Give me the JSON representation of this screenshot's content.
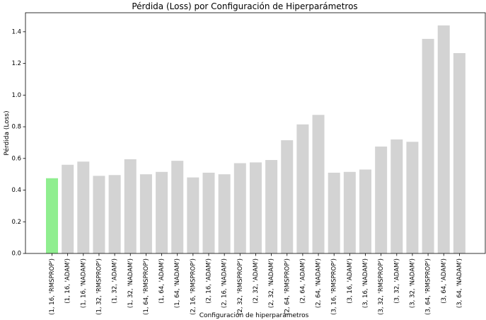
{
  "chart_data": {
    "type": "bar",
    "title": "Pérdida (Loss) por Configuración de Hiperparámetros",
    "xlabel": "Configuración de hiperparámetros",
    "ylabel": "Pérdida (Loss)",
    "ylim": [
      0,
      1.52
    ],
    "yticks": [
      "0.0",
      "0.2",
      "0.4",
      "0.6",
      "0.8",
      "1.0",
      "1.2",
      "1.4"
    ],
    "ytick_values": [
      0,
      0.2,
      0.4,
      0.6,
      0.8,
      1.0,
      1.2,
      1.4
    ],
    "grid": false,
    "categories": [
      "(1, 16, 'RMSPROP')",
      "(1, 16, 'ADAM')",
      "(1, 16, 'NADAM')",
      "(1, 32, 'RMSPROP')",
      "(1, 32, 'ADAM')",
      "(1, 32, 'NADAM')",
      "(1, 64, 'RMSPROP')",
      "(1, 64, 'ADAM')",
      "(1, 64, 'NADAM')",
      "(2, 16, 'RMSPROP')",
      "(2, 16, 'ADAM')",
      "(2, 16, 'NADAM')",
      "(2, 32, 'RMSPROP')",
      "(2, 32, 'ADAM')",
      "(2, 32, 'NADAM')",
      "(2, 64, 'RMSPROP')",
      "(2, 64, 'ADAM')",
      "(2, 64, 'NADAM')",
      "(3, 16, 'RMSPROP')",
      "(3, 16, 'ADAM')",
      "(3, 16, 'NADAM')",
      "(3, 32, 'RMSPROP')",
      "(3, 32, 'ADAM')",
      "(3, 32, 'NADAM')",
      "(3, 64, 'RMSPROP')",
      "(3, 64, 'ADAM')",
      "(3, 64, 'NADAM')"
    ],
    "values": [
      0.475,
      0.56,
      0.58,
      0.49,
      0.495,
      0.595,
      0.5,
      0.515,
      0.585,
      0.48,
      0.51,
      0.5,
      0.57,
      0.575,
      0.59,
      0.715,
      0.815,
      0.875,
      0.51,
      0.515,
      0.53,
      0.675,
      0.72,
      0.705,
      1.355,
      1.44,
      1.265
    ],
    "highlight_index": 0,
    "colors": {
      "bar": "#d3d3d3",
      "highlight": "#90ee90"
    }
  }
}
